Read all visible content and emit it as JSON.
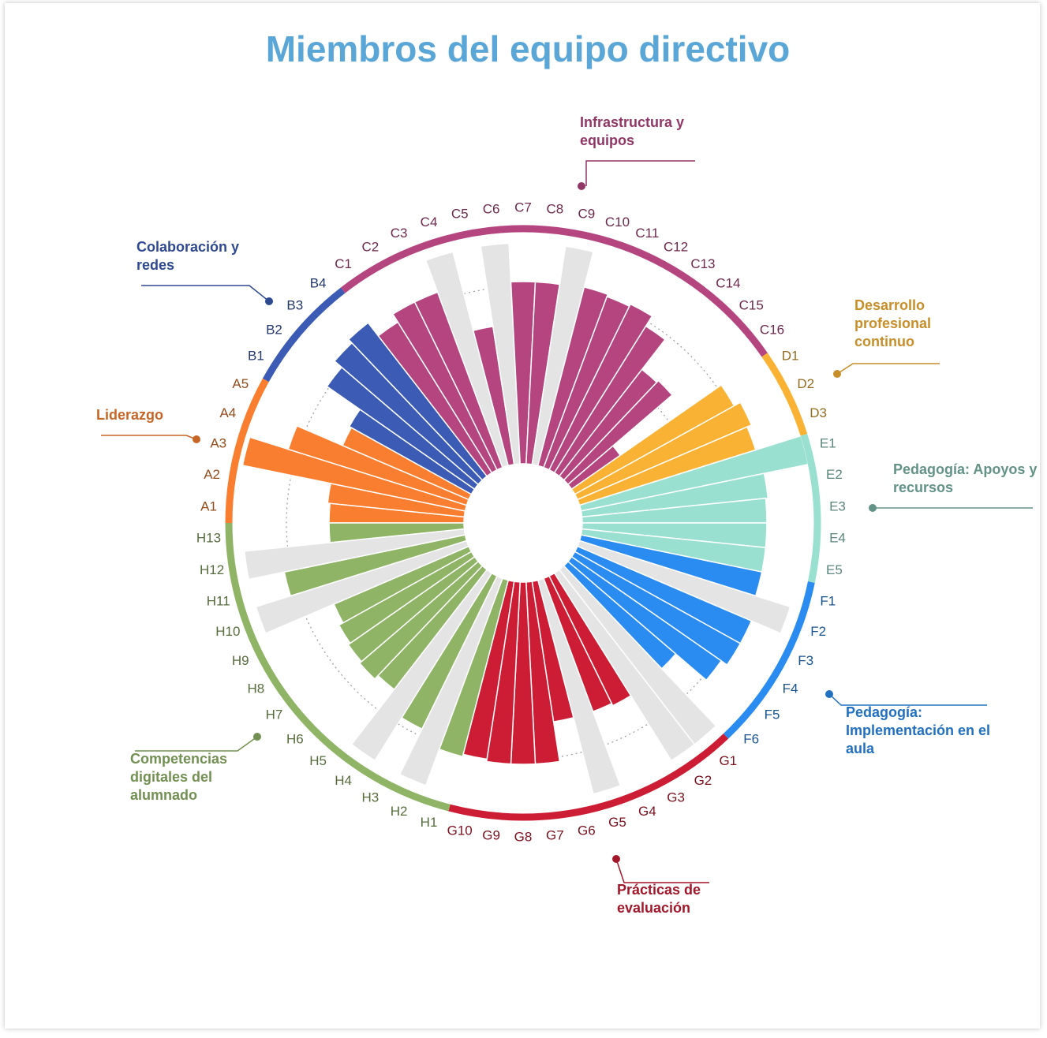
{
  "chart_data": {
    "type": "radial_bar",
    "title": "Miembros del equipo directivo",
    "ylim": [
      0,
      100
    ],
    "yticks": [
      50,
      75
    ],
    "grid": true,
    "series": [
      {
        "name": "Liderazgo",
        "color": "#f97e2f",
        "categories": [
          "A1",
          "A2",
          "A3",
          "A4",
          "A5"
        ],
        "values": [
          57,
          58,
          96,
          79,
          58
        ]
      },
      {
        "name": "Colaboración y redes",
        "color": "#3b5bb5",
        "categories": [
          "B1",
          "B2",
          "B3",
          "B4"
        ],
        "values": [
          59,
          76,
          80,
          82
        ]
      },
      {
        "name": "Infrastructura y equipos",
        "color": "#b5457f",
        "categories": [
          "C1",
          "C2",
          "C3",
          "C4",
          "C5",
          "C6",
          "C7",
          "C8",
          "C9",
          "C10",
          "C11",
          "C12",
          "C13",
          "C14",
          "C15",
          "C16"
        ],
        "values": [
          75,
          79,
          79,
          null,
          59,
          null,
          77,
          77,
          null,
          78,
          77,
          78,
          73,
          57,
          58,
          25
        ]
      },
      {
        "name": "Desarrollo profesional continuo",
        "color": "#f9b233",
        "categories": [
          "D1",
          "D2",
          "D3"
        ],
        "values": [
          77,
          80,
          78
        ]
      },
      {
        "name": "Pedagogía: Apoyos y recursos",
        "color": "#99e0d0",
        "categories": [
          "E1",
          "E2",
          "E3",
          "E4",
          "E5"
        ],
        "values": [
          98,
          79,
          78,
          78,
          78
        ]
      },
      {
        "name": "Pedagogía: Implementación en el aula",
        "color": "#2a8cf0",
        "categories": [
          "F1",
          "F2",
          "F3",
          "F4",
          "F5",
          "F6"
        ],
        "values": [
          78,
          null,
          80,
          80,
          77,
          60
        ]
      },
      {
        "name": "Prácticas de evaluación",
        "color": "#cc1d34",
        "categories": [
          "G1",
          "G2",
          "G3",
          "G4",
          "G5",
          "G6",
          "G7",
          "G8",
          "G9",
          "G10"
        ],
        "values": [
          null,
          null,
          61,
          60,
          null,
          60,
          77,
          77,
          77,
          76
        ]
      },
      {
        "name": "Competencias digitales del alumnado",
        "color": "#8fb466",
        "categories": [
          "H1",
          "H2",
          "H3",
          "H4",
          "H5",
          "H6",
          "H7",
          "H8",
          "H9",
          "H10",
          "H11",
          "H12",
          "H13"
        ],
        "values": [
          77,
          null,
          72,
          null,
          64,
          66,
          65,
          64,
          62,
          null,
          78,
          null,
          57
        ]
      }
    ]
  }
}
